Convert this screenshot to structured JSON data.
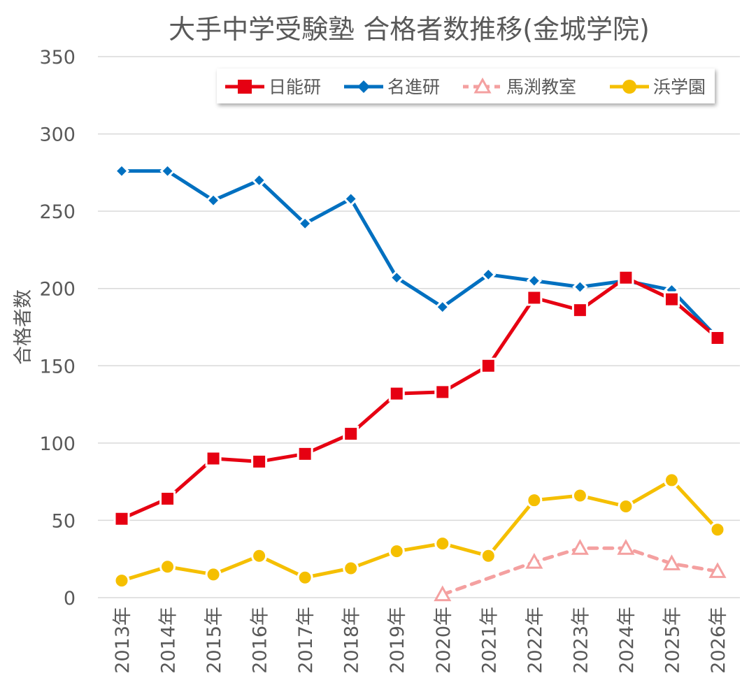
{
  "chart_data": {
    "type": "line",
    "title": "大手中学受験塾 合格者数推移(金城学院)",
    "xlabel": "",
    "ylabel": "合格者数",
    "ylim": [
      0,
      350
    ],
    "yticks": [
      0,
      50,
      100,
      150,
      200,
      250,
      300,
      350
    ],
    "grid": true,
    "legend_position": "top-right",
    "categories": [
      "2013年",
      "2014年",
      "2015年",
      "2016年",
      "2017年",
      "2018年",
      "2019年",
      "2020年",
      "2021年",
      "2022年",
      "2023年",
      "2024年",
      "2025年",
      "2026年"
    ],
    "series": [
      {
        "name": "日能研",
        "color": "#e60012",
        "marker": "square",
        "dashed": false,
        "values": [
          51,
          64,
          90,
          88,
          93,
          106,
          132,
          133,
          150,
          194,
          186,
          207,
          193,
          168
        ]
      },
      {
        "name": "名進研",
        "color": "#0070c0",
        "marker": "diamond",
        "dashed": false,
        "values": [
          276,
          276,
          257,
          270,
          242,
          258,
          207,
          188,
          209,
          205,
          201,
          205,
          199,
          168
        ]
      },
      {
        "name": "馬渕教室",
        "color": "#f4a0a0",
        "marker": "triangle",
        "dashed": true,
        "values": [
          null,
          null,
          null,
          null,
          null,
          null,
          null,
          2,
          null,
          23,
          32,
          32,
          22,
          17
        ]
      },
      {
        "name": "浜学園",
        "color": "#f5bf00",
        "marker": "circle",
        "dashed": false,
        "values": [
          11,
          20,
          15,
          27,
          13,
          19,
          30,
          35,
          27,
          63,
          66,
          59,
          76,
          44
        ]
      }
    ]
  }
}
